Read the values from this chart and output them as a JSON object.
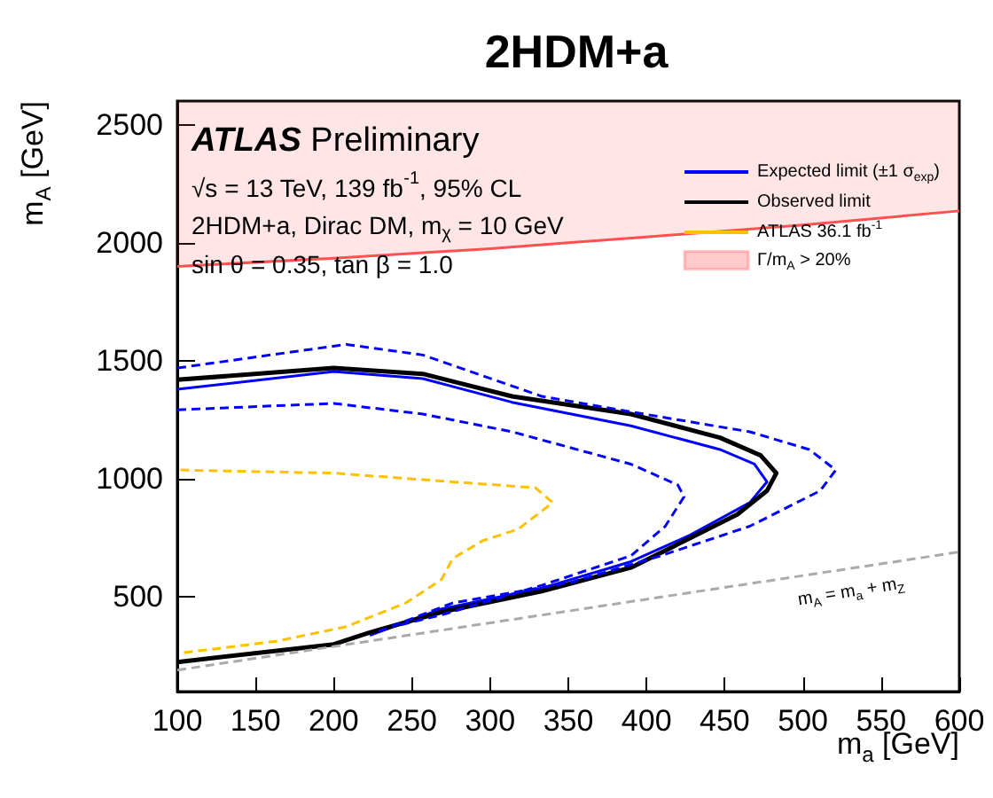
{
  "chart_data": {
    "type": "line",
    "title": "2HDM+a",
    "xlabel": "m$_{a}$ [GeV]",
    "ylabel": "m$_{A}$ [GeV]",
    "xlim": [
      100,
      600
    ],
    "xticks": [
      100,
      150,
      200,
      250,
      300,
      350,
      400,
      450,
      500,
      550,
      600
    ],
    "ylim": [
      100,
      2600
    ],
    "yticks": [
      500,
      1000,
      1500,
      2000,
      2500
    ],
    "grid": false,
    "legend": "top right",
    "marker": "none",
    "annotations": [
      "ATLAS Preliminary",
      "√s = 13 TeV, 139 fb$^{-1}$, 95% CL",
      "2HDM+a, Dirac DM, m$_{χ}$ = 10 GeV",
      "sin θ = 0.35, tan β = 1.0",
      "m$_{A}$ = m$_{a}$ + m$_{Z}$"
    ],
    "series": [
      {
        "name": "Expected limit (±1 σ$_{exp}$)",
        "color": "#0000ff",
        "line_style": "solid",
        "x": [
          100,
          200,
          257,
          314,
          390,
          447,
          469,
          477,
          466,
          428,
          390,
          333,
          269,
          223
        ],
        "values": [
          1380,
          1455,
          1425,
          1325,
          1225,
          1125,
          1063,
          988,
          900,
          763,
          650,
          538,
          450,
          338
        ]
      },
      {
        "name": "Observed limit",
        "color": "#000000",
        "line_style": "solid",
        "x": [
          100,
          200,
          257,
          314,
          390,
          447,
          473,
          483,
          477,
          458,
          428,
          390,
          333,
          269,
          223,
          200,
          100
        ],
        "values": [
          1420,
          1470,
          1445,
          1350,
          1275,
          1175,
          1100,
          1025,
          950,
          850,
          750,
          625,
          525,
          437,
          350,
          300,
          225
        ]
      },
      {
        "name": "ATLAS 36.1 fb$^{-1}$",
        "color": "#ffc000",
        "line_style": "dashed",
        "x": [
          102,
          200,
          276,
          329,
          340,
          318,
          295,
          276,
          269,
          246,
          208,
          163,
          102
        ],
        "values": [
          1038,
          1025,
          988,
          963,
          900,
          788,
          738,
          663,
          575,
          475,
          375,
          313,
          263
        ]
      },
      {
        "name": "Γ/m$_{A}$ > 20%",
        "color": "#ff5050",
        "x": [
          100,
          200,
          300,
          350,
          400,
          500,
          600
        ],
        "values": [
          1900,
          1935,
          1975,
          2000,
          2025,
          2075,
          2135
        ],
        "lower": [
          1900,
          1935,
          1975,
          2000,
          2025,
          2075,
          2135
        ],
        "upper": [
          2600,
          2600,
          2600,
          2600,
          2600,
          2600,
          2600
        ]
      },
      {
        "color": "#aaaaaa",
        "line_style": "dashed",
        "x": [
          100,
          600
        ],
        "values": [
          191,
          691
        ]
      },
      {
        "color": "#0000ff",
        "line_style": "dashed",
        "x": [
          100,
          208,
          257,
          333,
          409,
          466,
          504,
          521,
          511,
          466,
          409,
          352,
          276,
          227
        ],
        "values": [
          1470,
          1570,
          1525,
          1350,
          1263,
          1200,
          1125,
          1038,
          950,
          800,
          675,
          563,
          475,
          350
        ]
      },
      {
        "color": "#0000ff",
        "line_style": "dashed",
        "x": [
          100,
          200,
          257,
          314,
          390,
          420,
          424,
          412,
          390,
          333,
          269,
          238
        ],
        "values": [
          1293,
          1320,
          1275,
          1200,
          1063,
          975,
          925,
          800,
          675,
          550,
          425,
          375
        ]
      }
    ]
  }
}
